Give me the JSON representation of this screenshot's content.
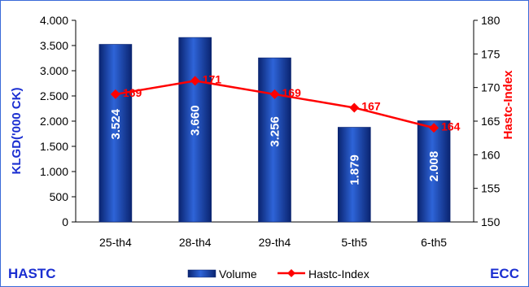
{
  "chart_data": {
    "type": "bar",
    "categories": [
      "25-th4",
      "28-th4",
      "29-th4",
      "5-th5",
      "6-th5"
    ],
    "series": [
      {
        "name": "Volume",
        "type": "bar",
        "axis": "left",
        "values": [
          3524,
          3660,
          3256,
          1879,
          2008
        ],
        "labels": [
          "3.524",
          "3.660",
          "3.256",
          "1.879",
          "2.008"
        ]
      },
      {
        "name": "Hastc-Index",
        "type": "line",
        "axis": "right",
        "values": [
          169,
          171,
          169,
          167,
          164
        ],
        "labels": [
          "169",
          "171",
          "169",
          "167",
          "164"
        ]
      }
    ],
    "y_left": {
      "label": "KLGD('000 CK)",
      "ylim": [
        0,
        4000
      ],
      "ticks": [
        0,
        500,
        1000,
        1500,
        2000,
        2500,
        3000,
        3500,
        4000
      ],
      "tick_labels": [
        "0",
        "500",
        "1.000",
        "1.500",
        "2.000",
        "2.500",
        "3.000",
        "3.500",
        "4.000"
      ]
    },
    "y_right": {
      "label": "Hastc-Index",
      "ylim": [
        150,
        180
      ],
      "ticks": [
        150,
        155,
        160,
        165,
        170,
        175,
        180
      ],
      "tick_labels": [
        "150",
        "155",
        "160",
        "165",
        "170",
        "175",
        "180"
      ]
    },
    "legend": {
      "placement": "bottom",
      "entries": [
        "Volume",
        "Hastc-Index"
      ]
    },
    "corner_left": "HASTC",
    "corner_right": "ECC",
    "colors": {
      "bar": "#1f4fbf",
      "bar_dark": "#0a2470",
      "line": "#ff0000",
      "left_title": "#1a2ed1",
      "right_title": "#ff0000",
      "corner_left": "#1a2ed1",
      "corner_right": "#1a2ed1"
    }
  }
}
